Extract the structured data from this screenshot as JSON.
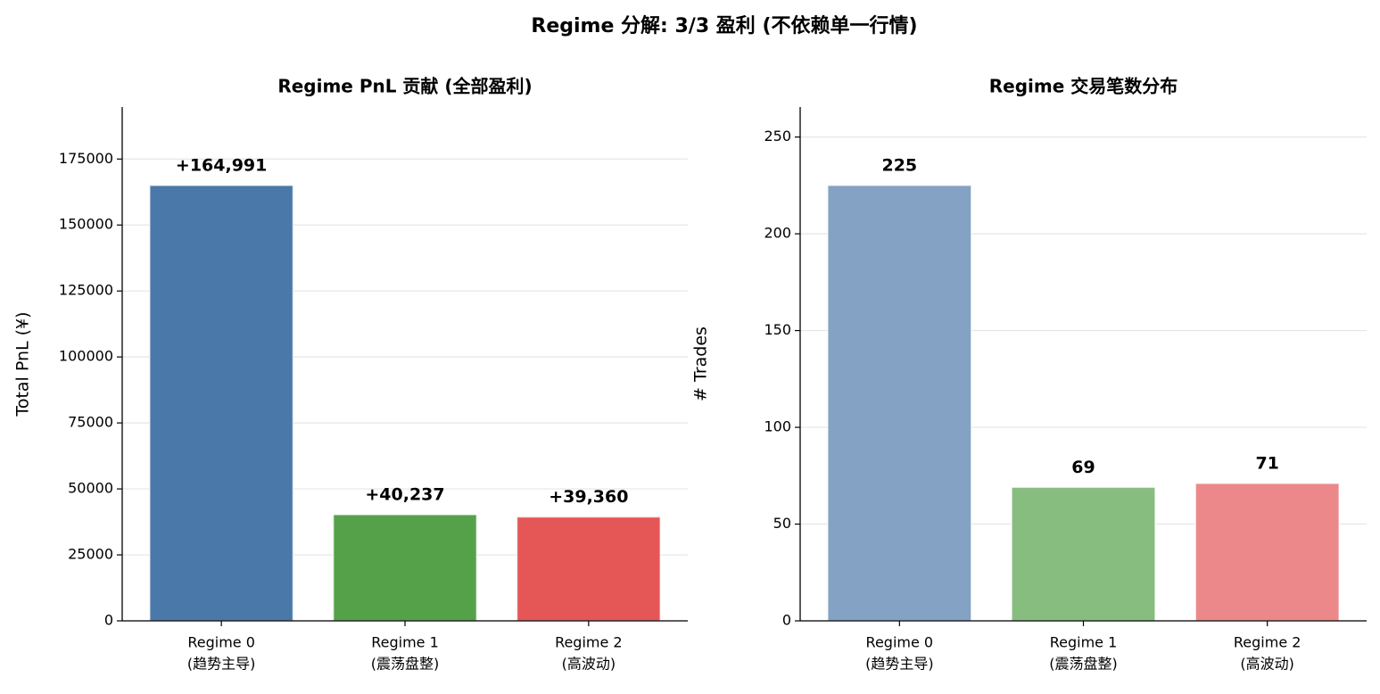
{
  "title": "Regime 分解: 3/3 盈利 (不依赖单一行情)",
  "chart_data": [
    {
      "type": "bar",
      "title": "Regime PnL 贡献 (全部盈利)",
      "ylabel": "Total PnL (¥)",
      "categories": [
        [
          "Regime 0",
          "(趋势主导)"
        ],
        [
          "Regime 1",
          "(震荡盘整)"
        ],
        [
          "Regime 2",
          "(高波动)"
        ]
      ],
      "values": [
        164991,
        40237,
        39360
      ],
      "value_labels": [
        "+164,991",
        "+40,237",
        "+39,360"
      ],
      "colors": [
        "#4a78a8",
        "#55a14a",
        "#e45756"
      ],
      "ylim": [
        0,
        194700
      ],
      "yticks": [
        0,
        25000,
        50000,
        75000,
        100000,
        125000,
        150000,
        175000
      ],
      "grid": true
    },
    {
      "type": "bar",
      "title": "Regime 交易笔数分布",
      "ylabel": "# Trades",
      "categories": [
        [
          "Regime 0",
          "(趋势主导)"
        ],
        [
          "Regime 1",
          "(震荡盘整)"
        ],
        [
          "Regime 2",
          "(高波动)"
        ]
      ],
      "values": [
        225,
        69,
        71
      ],
      "colors": [
        "#83a2c4",
        "#88bd80",
        "#ec8889"
      ],
      "ylim": [
        0,
        265.5
      ],
      "yticks": [
        0,
        50,
        100,
        150,
        200,
        250
      ],
      "grid": true
    }
  ]
}
